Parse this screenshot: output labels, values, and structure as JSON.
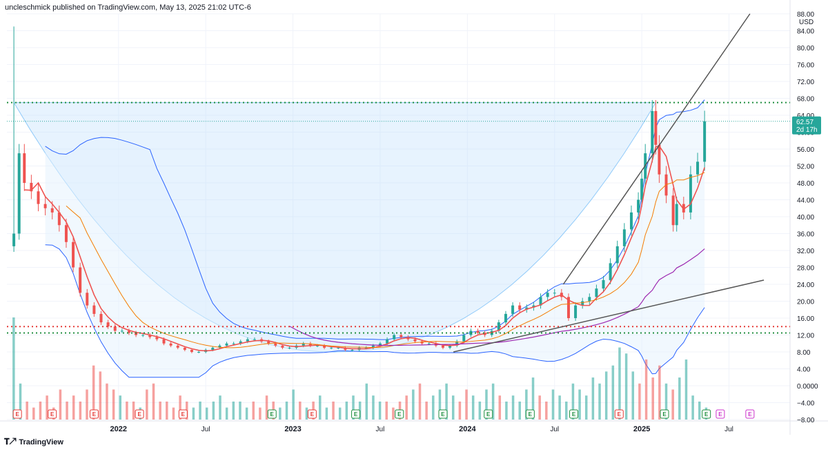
{
  "header": {
    "publisher_line": "uncleschmick published on TradingView.com, May 13, 2025 21:02 UTC-6"
  },
  "footer": {
    "brand": "TradingView",
    "logo_icon": "tradingview-logo-icon"
  },
  "price_tag": {
    "price": "62.57",
    "countdown": "2d 17h",
    "color": "#26a69a"
  },
  "colors": {
    "up": "#26a69a",
    "down": "#ef5350",
    "ema_fast": "#f57c00",
    "kijun": "#ef5350",
    "sma_long": "#9c27b0",
    "bollinger": "#2962ff",
    "cup_fill": "#bbdefb",
    "trendline": "#555555",
    "green_dots": "#1e8e3e",
    "red_dots": "#e53935",
    "earnings_red": "#e53935",
    "earnings_green": "#1e8e3e",
    "earnings_purple": "#cc33cc"
  },
  "chart_data": {
    "type": "candlestick",
    "title": "",
    "currency_label": "USD",
    "ylim": [
      -8,
      88
    ],
    "y_ticks": [
      "88.00",
      "84.00",
      "80.00",
      "76.00",
      "72.00",
      "68.00",
      "64.00",
      "60.00",
      "56.00",
      "52.00",
      "48.00",
      "44.00",
      "40.00",
      "36.00",
      "32.00",
      "28.00",
      "24.00",
      "20.00",
      "16.00",
      "12.00",
      "8.00",
      "4.00",
      "0.0000",
      "−4.00",
      "−8.00"
    ],
    "y_tick_values": [
      88,
      84,
      80,
      76,
      72,
      68,
      64,
      60,
      56,
      52,
      48,
      44,
      40,
      36,
      32,
      28,
      24,
      20,
      16,
      12,
      8,
      4,
      0,
      -4,
      -8
    ],
    "x_ticks": [
      {
        "label": "2022",
        "t": 2022.0,
        "bold": true
      },
      {
        "label": "Jul",
        "t": 2022.5,
        "bold": false
      },
      {
        "label": "2023",
        "t": 2023.0,
        "bold": true
      },
      {
        "label": "Jul",
        "t": 2023.5,
        "bold": false
      },
      {
        "label": "2024",
        "t": 2024.0,
        "bold": true
      },
      {
        "label": "Jul",
        "t": 2024.5,
        "bold": false
      },
      {
        "label": "2025",
        "t": 2025.0,
        "bold": true
      },
      {
        "label": "Jul",
        "t": 2025.5,
        "bold": false
      }
    ],
    "time_range": [
      2021.36,
      2025.85
    ],
    "weekly_close": [
      [
        2021.4,
        36
      ],
      [
        2021.43,
        55
      ],
      [
        2021.46,
        48
      ],
      [
        2021.5,
        46
      ],
      [
        2021.54,
        43
      ],
      [
        2021.58,
        42
      ],
      [
        2021.62,
        41
      ],
      [
        2021.66,
        38
      ],
      [
        2021.7,
        34
      ],
      [
        2021.74,
        28
      ],
      [
        2021.78,
        22
      ],
      [
        2021.82,
        19
      ],
      [
        2021.86,
        17
      ],
      [
        2021.9,
        15
      ],
      [
        2021.94,
        14
      ],
      [
        2021.98,
        13
      ],
      [
        2022.02,
        13
      ],
      [
        2022.06,
        12.5
      ],
      [
        2022.1,
        12
      ],
      [
        2022.14,
        12
      ],
      [
        2022.18,
        11.5
      ],
      [
        2022.22,
        11
      ],
      [
        2022.26,
        10
      ],
      [
        2022.3,
        9.5
      ],
      [
        2022.34,
        9
      ],
      [
        2022.38,
        8.5
      ],
      [
        2022.42,
        8
      ],
      [
        2022.46,
        8
      ],
      [
        2022.5,
        8.5
      ],
      [
        2022.54,
        9
      ],
      [
        2022.58,
        9.5
      ],
      [
        2022.62,
        10
      ],
      [
        2022.66,
        10
      ],
      [
        2022.7,
        10.5
      ],
      [
        2022.74,
        11
      ],
      [
        2022.78,
        11
      ],
      [
        2022.82,
        10.5
      ],
      [
        2022.86,
        10
      ],
      [
        2022.9,
        9.5
      ],
      [
        2022.94,
        9
      ],
      [
        2022.98,
        9
      ],
      [
        2023.02,
        9.5
      ],
      [
        2023.06,
        10
      ],
      [
        2023.1,
        9.5
      ],
      [
        2023.14,
        9.5
      ],
      [
        2023.18,
        9
      ],
      [
        2023.22,
        9
      ],
      [
        2023.26,
        9
      ],
      [
        2023.3,
        8.5
      ],
      [
        2023.34,
        8.5
      ],
      [
        2023.38,
        9
      ],
      [
        2023.42,
        9
      ],
      [
        2023.46,
        9.5
      ],
      [
        2023.5,
        10
      ],
      [
        2023.54,
        11
      ],
      [
        2023.58,
        12
      ],
      [
        2023.62,
        11.5
      ],
      [
        2023.66,
        11
      ],
      [
        2023.7,
        10.5
      ],
      [
        2023.74,
        10
      ],
      [
        2023.78,
        10
      ],
      [
        2023.82,
        9.5
      ],
      [
        2023.86,
        9
      ],
      [
        2023.9,
        9.5
      ],
      [
        2023.94,
        10.5
      ],
      [
        2023.98,
        12
      ],
      [
        2024.02,
        13
      ],
      [
        2024.06,
        12.5
      ],
      [
        2024.1,
        12
      ],
      [
        2024.14,
        13
      ],
      [
        2024.18,
        15
      ],
      [
        2024.22,
        17
      ],
      [
        2024.26,
        19
      ],
      [
        2024.3,
        18
      ],
      [
        2024.34,
        18.5
      ],
      [
        2024.38,
        19
      ],
      [
        2024.42,
        21
      ],
      [
        2024.46,
        22
      ],
      [
        2024.5,
        22
      ],
      [
        2024.54,
        21
      ],
      [
        2024.58,
        16
      ],
      [
        2024.62,
        19
      ],
      [
        2024.66,
        20
      ],
      [
        2024.7,
        21
      ],
      [
        2024.74,
        23
      ],
      [
        2024.78,
        25
      ],
      [
        2024.82,
        29
      ],
      [
        2024.86,
        33
      ],
      [
        2024.9,
        37
      ],
      [
        2024.94,
        41
      ],
      [
        2024.98,
        44
      ],
      [
        2025.0,
        49
      ],
      [
        2025.02,
        55
      ],
      [
        2025.06,
        65
      ],
      [
        2025.08,
        57
      ],
      [
        2025.1,
        50
      ],
      [
        2025.14,
        45
      ],
      [
        2025.18,
        38
      ],
      [
        2025.2,
        43
      ],
      [
        2025.24,
        41
      ],
      [
        2025.28,
        50
      ],
      [
        2025.32,
        53
      ],
      [
        2025.36,
        62.57
      ]
    ],
    "first_candle_wick_high": 85,
    "volume": [
      17,
      6,
      3,
      2,
      3,
      4,
      2,
      5,
      3,
      4,
      3,
      5,
      9,
      8,
      6,
      5,
      4,
      3,
      3,
      2,
      5,
      6,
      3,
      3,
      2,
      4,
      3,
      2,
      3,
      2,
      3,
      4,
      2,
      3,
      3,
      2,
      3,
      2,
      4,
      3,
      2,
      3,
      5,
      3,
      2,
      3,
      4,
      2,
      3,
      2,
      3,
      4,
      3,
      6,
      4,
      3,
      3,
      2,
      3,
      4,
      5,
      6,
      3,
      4,
      5,
      6,
      4,
      3,
      5,
      4,
      3,
      5,
      6,
      4,
      3,
      4,
      3,
      5,
      7,
      4,
      3,
      5,
      4,
      3,
      6,
      5,
      4,
      7,
      6,
      8,
      9,
      12,
      11,
      8,
      6,
      10,
      7,
      9,
      6,
      5,
      7,
      10,
      4,
      3,
      2
    ],
    "volume_label_note": "",
    "levels": [
      {
        "name": "resistance-green",
        "value": 67,
        "color": "green"
      },
      {
        "name": "support-red",
        "value": 14,
        "color": "red"
      },
      {
        "name": "support-green",
        "value": 12.5,
        "color": "green"
      }
    ],
    "trendlines": [
      {
        "from": [
          2023.92,
          8
        ],
        "to": [
          2025.7,
          25
        ]
      },
      {
        "from": [
          2024.55,
          24
        ],
        "to": [
          2025.62,
          88
        ]
      }
    ],
    "earnings_markers": [
      {
        "t": 2021.42,
        "type": "red"
      },
      {
        "t": 2021.62,
        "type": "red"
      },
      {
        "t": 2021.86,
        "type": "red"
      },
      {
        "t": 2022.12,
        "type": "red"
      },
      {
        "t": 2022.37,
        "type": "red"
      },
      {
        "t": 2022.88,
        "type": "green"
      },
      {
        "t": 2023.11,
        "type": "red"
      },
      {
        "t": 2023.36,
        "type": "green"
      },
      {
        "t": 2023.61,
        "type": "green"
      },
      {
        "t": 2023.86,
        "type": "green"
      },
      {
        "t": 2024.12,
        "type": "green"
      },
      {
        "t": 2024.36,
        "type": "green"
      },
      {
        "t": 2024.61,
        "type": "green"
      },
      {
        "t": 2024.87,
        "type": "red"
      },
      {
        "t": 2025.13,
        "type": "green"
      },
      {
        "t": 2025.37,
        "type": "green"
      },
      {
        "t": 2025.45,
        "type": "purple"
      },
      {
        "t": 2025.62,
        "type": "purple"
      }
    ],
    "earnings_label": "E",
    "axis_currency": "USD",
    "grid": true
  }
}
